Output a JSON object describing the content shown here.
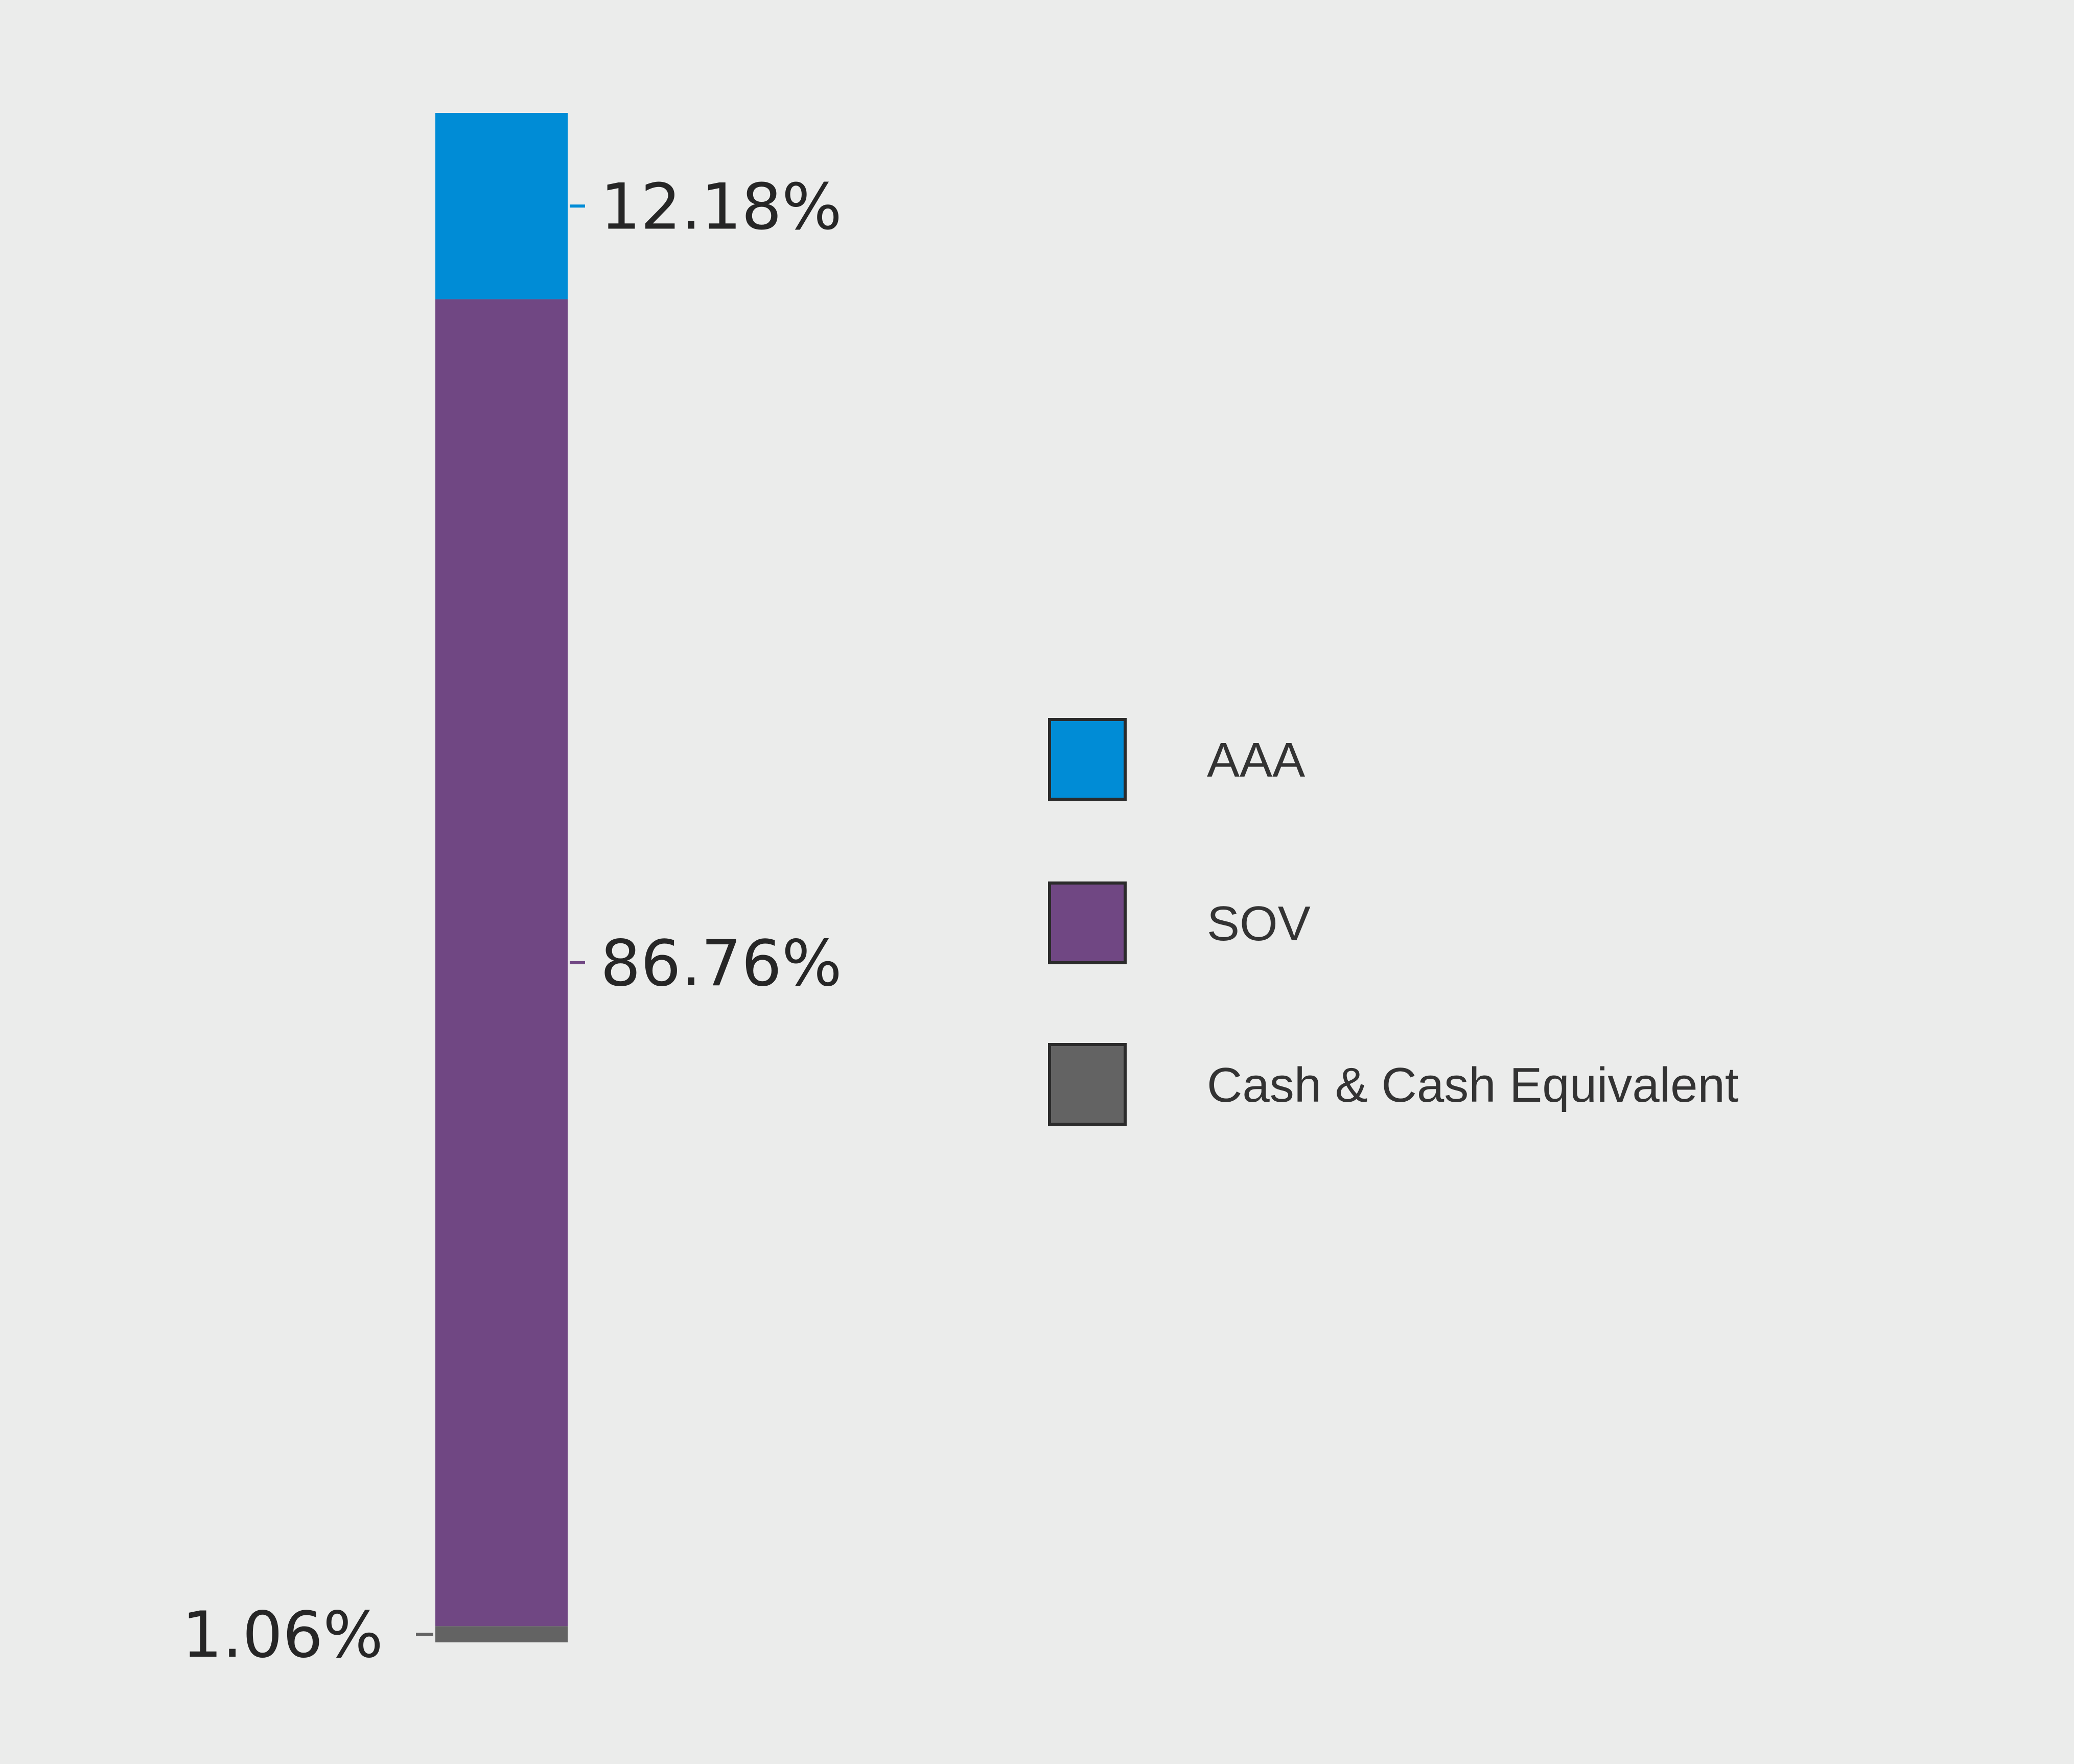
{
  "chart_data": {
    "type": "bar",
    "stacked": true,
    "orientation": "vertical",
    "categories": [
      ""
    ],
    "series": [
      {
        "name": "AAA",
        "values": [
          12.18
        ],
        "color": "#008CD6",
        "label": "12.18%"
      },
      {
        "name": "SOV",
        "values": [
          86.76
        ],
        "color": "#704783",
        "label": "86.76%"
      },
      {
        "name": "Cash & Cash Equivalent",
        "values": [
          1.06
        ],
        "color": "#636363",
        "label": "1.06%"
      }
    ],
    "stack_order": "bottom-to-top: Cash & Cash Equivalent, SOV, AAA",
    "ylim": [
      0,
      100
    ],
    "grid": false,
    "axes_visible": false,
    "legend": {
      "placement": "right",
      "entries": [
        "AAA",
        "SOV",
        "Cash & Cash Equivalent"
      ]
    },
    "background": "#EBECEB"
  }
}
